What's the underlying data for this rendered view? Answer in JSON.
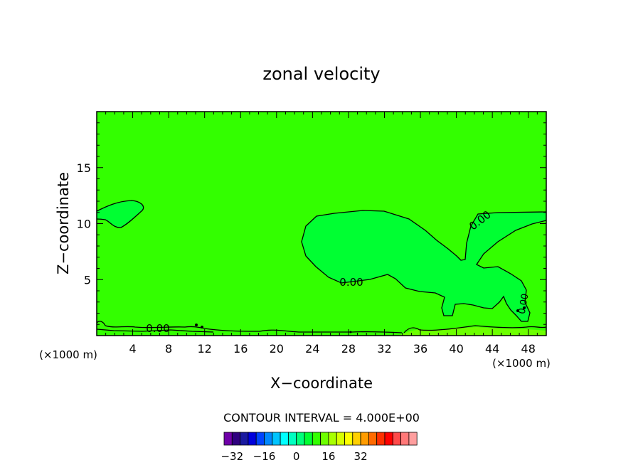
{
  "chart_data": {
    "type": "contour",
    "title": "zonal velocity",
    "xlabel": "X−coordinate",
    "ylabel": "Z−coordinate",
    "x_unit_label": "(×1000 m)",
    "y_unit_label": "(×1000 m)",
    "xlim": [
      0,
      50
    ],
    "ylim": [
      0,
      20
    ],
    "x_ticks": [
      "4",
      "8",
      "12",
      "16",
      "20",
      "24",
      "28",
      "32",
      "36",
      "40",
      "44",
      "48"
    ],
    "y_ticks": [
      "5",
      "10",
      "15"
    ],
    "contour_labels": [
      "0.00",
      "0.00",
      "0.00",
      "0.00",
      "0.00"
    ],
    "contour_interval_text": "CONTOUR INTERVAL = 4.000E+00",
    "colorbar": {
      "tick_labels": [
        "−32",
        "−16",
        "0",
        "16",
        "32"
      ],
      "colors": [
        "#6f00a8",
        "#2f007f",
        "#1a1aa0",
        "#0000dc",
        "#0044ff",
        "#0088ff",
        "#00c4ff",
        "#00ffff",
        "#00ffc0",
        "#00ff7a",
        "#00ff32",
        "#33ff00",
        "#6dff00",
        "#a8ff00",
        "#d8ff00",
        "#ffff00",
        "#ffd000",
        "#ff9c00",
        "#ff6a00",
        "#ff3000",
        "#ff0000",
        "#ff4a4a",
        "#ff7878",
        "#ff9e9e"
      ]
    },
    "fill_colors": {
      "background": "#33ff00",
      "negative_region": "#00ff32",
      "weak_positive": "#6dff00"
    }
  }
}
